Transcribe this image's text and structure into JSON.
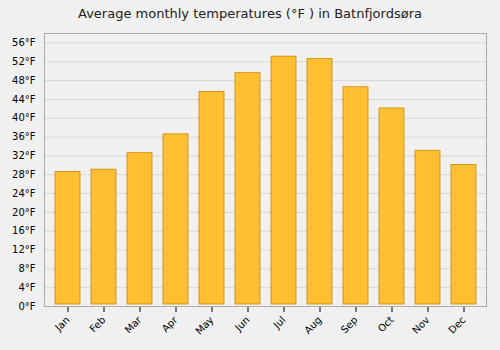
{
  "chart_data": {
    "type": "bar",
    "title": "Average monthly temperatures (°F ) in Batnfjordsøra",
    "categories": [
      "Jan",
      "Feb",
      "Mar",
      "Apr",
      "May",
      "Jun",
      "Jul",
      "Aug",
      "Sep",
      "Oct",
      "Nov",
      "Dec"
    ],
    "values": [
      29,
      29.5,
      33,
      37,
      46,
      50,
      53.5,
      53,
      47,
      42.5,
      33.5,
      30.5
    ],
    "color": "#FFBF30",
    "ylim": [
      0,
      58
    ],
    "yticks": [
      {
        "value": 0,
        "label": "0°F"
      },
      {
        "value": 4,
        "label": "4°F"
      },
      {
        "value": 8,
        "label": "8°F"
      },
      {
        "value": 12,
        "label": "12°F"
      },
      {
        "value": 16,
        "label": "16°F"
      },
      {
        "value": 20,
        "label": "20°F"
      },
      {
        "value": 24,
        "label": "24°F"
      },
      {
        "value": 28,
        "label": "28°F"
      },
      {
        "value": 32,
        "label": "32°F"
      },
      {
        "value": 36,
        "label": "36°F"
      },
      {
        "value": 40,
        "label": "40°F"
      },
      {
        "value": 44,
        "label": "44°F"
      },
      {
        "value": 48,
        "label": "48°F"
      },
      {
        "value": 52,
        "label": "52°F"
      },
      {
        "value": 56,
        "label": "56°F"
      }
    ],
    "grid": true
  }
}
